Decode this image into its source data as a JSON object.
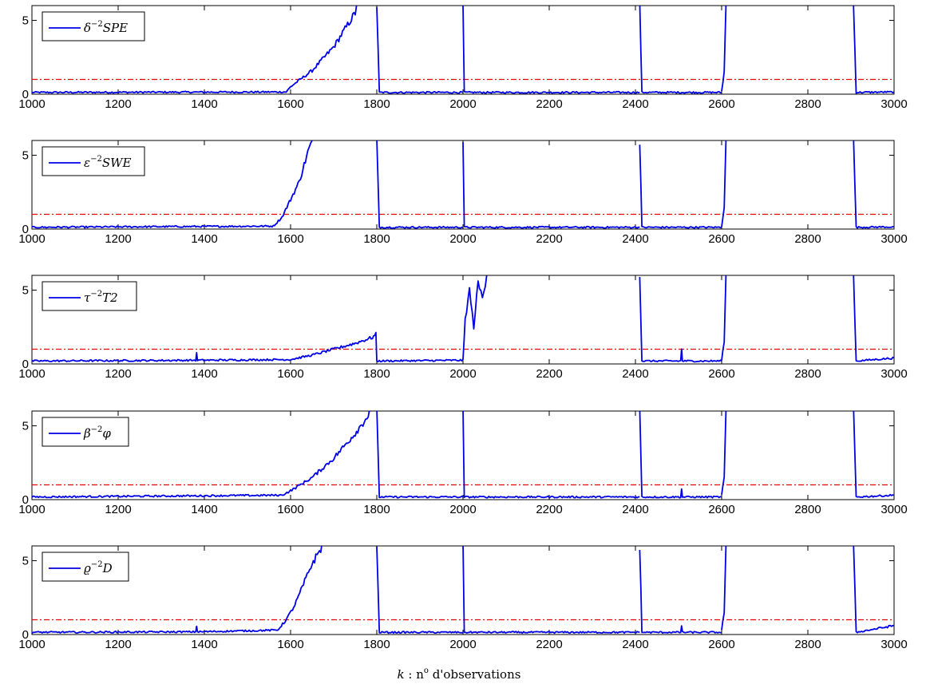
{
  "chart_data": [
    {
      "type": "line",
      "legend": {
        "base": "δ",
        "sup": "−2",
        "stat": "SPE"
      },
      "legend_position": "top-left",
      "x_range": [
        1000,
        3000
      ],
      "ylim": [
        0,
        6
      ],
      "yticks": [
        "0",
        "5"
      ],
      "xticks": [
        "1000",
        "1200",
        "1400",
        "1600",
        "1800",
        "2000",
        "2200",
        "2400",
        "2600",
        "2800",
        "3000"
      ],
      "threshold": 1,
      "baseline": 0.12,
      "segments": [
        {
          "x": [
            1000,
            1590,
            1600,
            1650,
            1700,
            1750,
            1753
          ],
          "y": [
            0.12,
            0.15,
            0.5,
            1.6,
            3.2,
            5.5,
            6
          ]
        },
        {
          "x": [
            1800,
            1806,
            2000
          ],
          "y": [
            6,
            0.12,
            0.12
          ]
        },
        {
          "x": [
            2000,
            2003,
            2410
          ],
          "y": [
            6,
            0.12,
            0.12
          ]
        },
        {
          "x": [
            2410,
            2415,
            2600
          ],
          "y": [
            6,
            0.12,
            0.12
          ]
        },
        {
          "x": [
            2600,
            2606,
            2610
          ],
          "y": [
            0.2,
            1.5,
            6
          ]
        },
        {
          "x": [
            2906,
            2912,
            3000
          ],
          "y": [
            6,
            0.12,
            0.15
          ]
        }
      ]
    },
    {
      "type": "line",
      "legend": {
        "base": "ε",
        "sup": "−2",
        "stat": "SWE"
      },
      "legend_position": "top-left",
      "x_range": [
        1000,
        3000
      ],
      "ylim": [
        0,
        6
      ],
      "yticks": [
        "0",
        "5"
      ],
      "xticks": [
        "1000",
        "1200",
        "1400",
        "1600",
        "1800",
        "2000",
        "2200",
        "2400",
        "2600",
        "2800",
        "3000"
      ],
      "threshold": 1,
      "baseline": 0.12,
      "segments": [
        {
          "x": [
            1000,
            1560,
            1580,
            1600,
            1620,
            1640,
            1650
          ],
          "y": [
            0.12,
            0.2,
            0.8,
            2.0,
            3.2,
            5.2,
            6
          ]
        },
        {
          "x": [
            1800,
            1806,
            2000
          ],
          "y": [
            6,
            0.12,
            0.12
          ]
        },
        {
          "x": [
            2000,
            2003,
            2410
          ],
          "y": [
            6,
            0.12,
            0.12
          ]
        },
        {
          "x": [
            2410,
            2415,
            2600
          ],
          "y": [
            6,
            0.12,
            0.12
          ]
        },
        {
          "x": [
            2600,
            2606,
            2610
          ],
          "y": [
            0.2,
            1.5,
            6
          ]
        },
        {
          "x": [
            2906,
            2912,
            3000
          ],
          "y": [
            6,
            0.12,
            0.15
          ]
        }
      ]
    },
    {
      "type": "line",
      "legend": {
        "base": "τ",
        "sup": "−2",
        "stat": "T2"
      },
      "legend_position": "top-left",
      "x_range": [
        1000,
        3000
      ],
      "ylim": [
        0,
        6
      ],
      "yticks": [
        "0",
        "5"
      ],
      "xticks": [
        "1000",
        "1200",
        "1400",
        "1600",
        "1800",
        "2000",
        "2200",
        "2400",
        "2600",
        "2800",
        "3000"
      ],
      "threshold": 1,
      "baseline": 0.2,
      "segments": [
        {
          "x": [
            1000,
            1380,
            1382,
            1384,
            1600,
            1650,
            1700,
            1750,
            1790,
            1798,
            1800
          ],
          "y": [
            0.2,
            0.25,
            0.7,
            0.25,
            0.3,
            0.6,
            1.0,
            1.4,
            1.8,
            2.0,
            0.2
          ]
        },
        {
          "x": [
            1800,
            2000,
            2005,
            2015,
            2025,
            2035,
            2045,
            2055
          ],
          "y": [
            0.2,
            0.25,
            3.0,
            5.0,
            2.5,
            5.5,
            4.5,
            6
          ]
        },
        {
          "x": [
            2410,
            2415,
            2505,
            2507,
            2509,
            2600
          ],
          "y": [
            6,
            0.2,
            0.2,
            1.0,
            0.2,
            0.2
          ]
        },
        {
          "x": [
            2600,
            2606,
            2610
          ],
          "y": [
            0.3,
            1.5,
            6
          ]
        },
        {
          "x": [
            2906,
            2912,
            3000
          ],
          "y": [
            6,
            0.2,
            0.4
          ]
        }
      ]
    },
    {
      "type": "line",
      "legend": {
        "base": "β",
        "sup": "−2",
        "stat": "φ"
      },
      "legend_position": "top-left",
      "x_range": [
        1000,
        3000
      ],
      "ylim": [
        0,
        6
      ],
      "yticks": [
        "0",
        "5"
      ],
      "xticks": [
        "1000",
        "1200",
        "1400",
        "1600",
        "1800",
        "2000",
        "2200",
        "2400",
        "2600",
        "2800",
        "3000"
      ],
      "threshold": 1,
      "baseline": 0.18,
      "segments": [
        {
          "x": [
            1000,
            1580,
            1600,
            1650,
            1700,
            1750,
            1780,
            1785
          ],
          "y": [
            0.18,
            0.3,
            0.6,
            1.5,
            2.8,
            4.5,
            5.7,
            6
          ]
        },
        {
          "x": [
            1800,
            1806,
            2000
          ],
          "y": [
            6,
            0.18,
            0.18
          ]
        },
        {
          "x": [
            2000,
            2003,
            2410
          ],
          "y": [
            6,
            0.18,
            0.18
          ]
        },
        {
          "x": [
            2410,
            2415,
            2505,
            2507,
            2509,
            2600
          ],
          "y": [
            6,
            0.18,
            0.18,
            0.7,
            0.18,
            0.18
          ]
        },
        {
          "x": [
            2600,
            2606,
            2610
          ],
          "y": [
            0.3,
            1.5,
            6
          ]
        },
        {
          "x": [
            2906,
            2912,
            3000
          ],
          "y": [
            6,
            0.18,
            0.3
          ]
        }
      ]
    },
    {
      "type": "line",
      "legend": {
        "base": "ϱ",
        "sup": "−2",
        "stat": "D"
      },
      "legend_position": "top-left",
      "x_range": [
        1000,
        3000
      ],
      "ylim": [
        0,
        6
      ],
      "yticks": [
        "0",
        "5"
      ],
      "xticks": [
        "1000",
        "1200",
        "1400",
        "1600",
        "1800",
        "2000",
        "2200",
        "2400",
        "2600",
        "2800",
        "3000"
      ],
      "threshold": 1,
      "baseline": 0.15,
      "segments": [
        {
          "x": [
            1000,
            1380,
            1382,
            1384,
            1570,
            1590,
            1610,
            1630,
            1650,
            1670,
            1675
          ],
          "y": [
            0.15,
            0.18,
            0.6,
            0.18,
            0.3,
            1.0,
            2.0,
            3.4,
            4.8,
            5.8,
            6
          ]
        },
        {
          "x": [
            1800,
            1806,
            2000
          ],
          "y": [
            6,
            0.15,
            0.15
          ]
        },
        {
          "x": [
            2000,
            2003,
            2410
          ],
          "y": [
            6,
            0.15,
            0.15
          ]
        },
        {
          "x": [
            2410,
            2415,
            2505,
            2507,
            2509,
            2600
          ],
          "y": [
            6,
            0.15,
            0.15,
            0.6,
            0.15,
            0.15
          ]
        },
        {
          "x": [
            2600,
            2606,
            2610
          ],
          "y": [
            0.3,
            1.5,
            6
          ]
        },
        {
          "x": [
            2906,
            2912,
            3000
          ],
          "y": [
            6,
            0.15,
            0.6
          ]
        }
      ]
    }
  ],
  "xlabel": {
    "var": "k",
    "rest": " : n",
    "sup": "o",
    "tail": " d'observations"
  },
  "colors": {
    "series": "#0000e6",
    "threshold": "#e60000",
    "axes": "#000000"
  }
}
